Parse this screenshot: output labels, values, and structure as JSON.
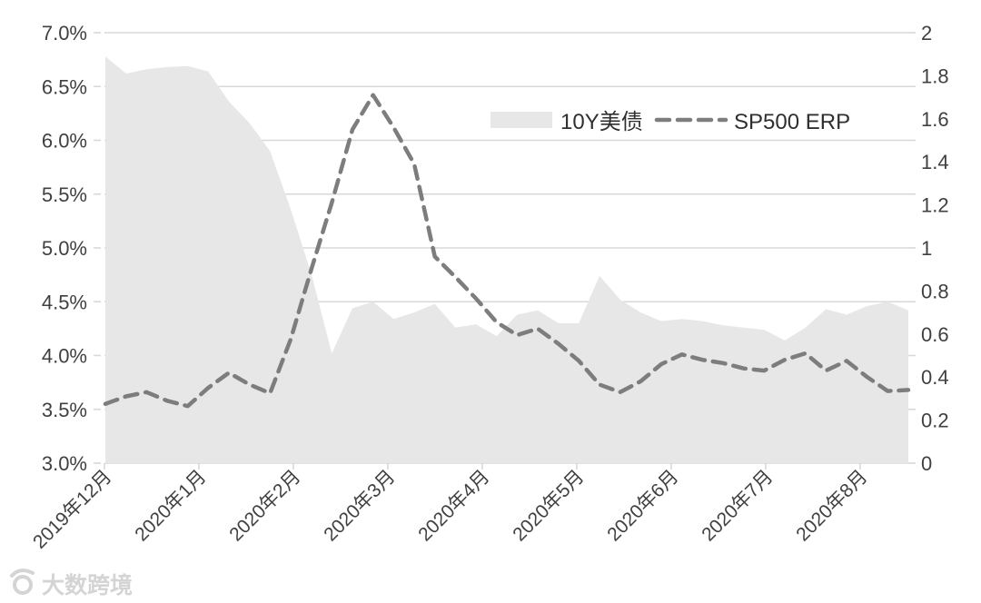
{
  "watermark": {
    "text": "大数跨境"
  },
  "colors": {
    "background": "#ffffff",
    "area_fill": "#e7e7e7",
    "dashed_line": "#7d7d7d",
    "gridline": "#d8d8d8",
    "axis_text": "#404040",
    "watermark_gray": "#d4d4d4"
  },
  "chart_data": {
    "type": "combo",
    "title": "",
    "grid": true,
    "legend_position": "top-center",
    "x_tick_labels": [
      "2019年12月",
      "2020年1月",
      "2020年2月",
      "2020年3月",
      "2020年4月",
      "2020年5月",
      "2020年6月",
      "2020年7月",
      "2020年8月"
    ],
    "left_axis": {
      "min": 3.0,
      "max": 7.0,
      "format": "percent",
      "tick_labels": [
        "7.0%",
        "6.5%",
        "6.0%",
        "5.5%",
        "5.0%",
        "4.5%",
        "4.0%",
        "3.5%",
        "3.0%"
      ]
    },
    "right_axis": {
      "min": 0,
      "max": 2,
      "tick_labels": [
        "2",
        "1.8",
        "1.6",
        "1.4",
        "1.2",
        "1",
        "0.8",
        "0.6",
        "0.4",
        "0.2",
        "0"
      ]
    },
    "series": [
      {
        "name": "10Y美债",
        "type": "area",
        "axis": "right",
        "color": "#e7e7e7",
        "values": [
          1.89,
          1.81,
          1.83,
          1.84,
          1.845,
          1.82,
          1.68,
          1.58,
          1.45,
          1.18,
          0.88,
          0.51,
          0.72,
          0.75,
          0.67,
          0.7,
          0.74,
          0.63,
          0.645,
          0.59,
          0.69,
          0.71,
          0.65,
          0.65,
          0.87,
          0.76,
          0.7,
          0.66,
          0.67,
          0.66,
          0.64,
          0.63,
          0.62,
          0.57,
          0.63,
          0.715,
          0.69,
          0.73,
          0.75,
          0.71
        ]
      },
      {
        "name": "SP500 ERP",
        "type": "line",
        "line_style": "dashed",
        "axis": "left",
        "color": "#7d7d7d",
        "values": [
          3.55,
          3.62,
          3.66,
          3.58,
          3.53,
          3.7,
          3.84,
          3.73,
          3.65,
          4.15,
          4.8,
          5.42,
          6.1,
          6.42,
          6.12,
          5.78,
          4.92,
          4.73,
          4.53,
          4.31,
          4.19,
          4.25,
          4.11,
          3.95,
          3.73,
          3.66,
          3.76,
          3.92,
          4.01,
          3.96,
          3.93,
          3.88,
          3.86,
          3.96,
          4.02,
          3.86,
          3.95,
          3.8,
          3.67,
          3.68
        ]
      }
    ]
  }
}
